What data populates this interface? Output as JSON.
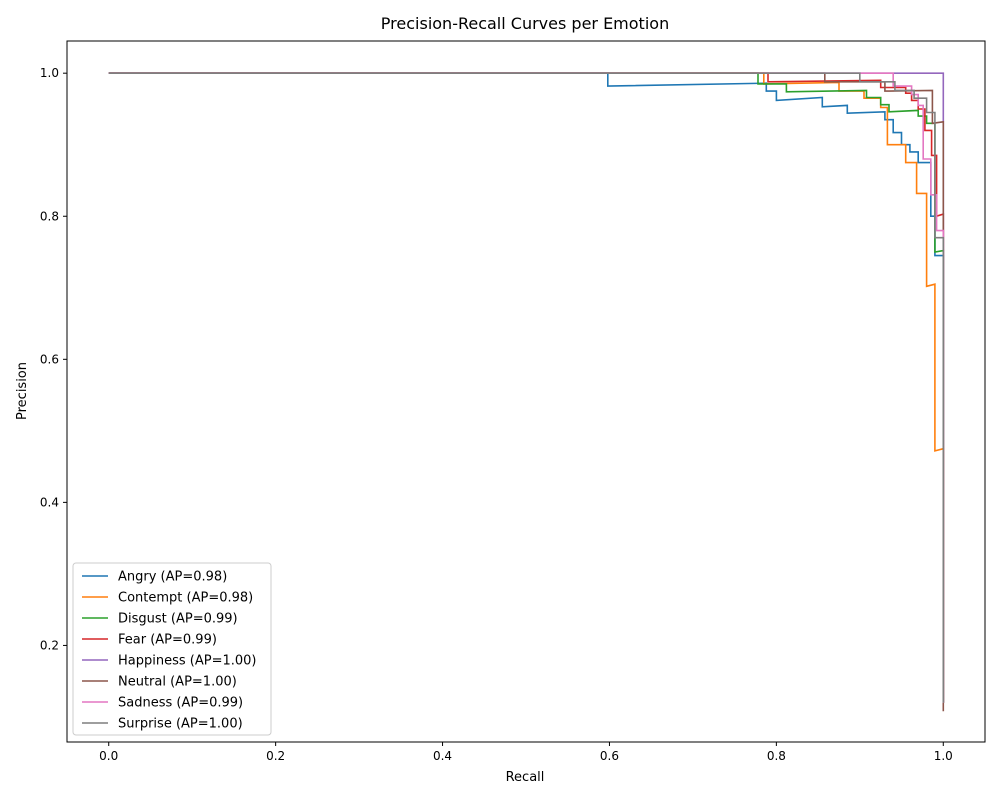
{
  "chart_data": {
    "type": "line",
    "title": "Precision-Recall Curves per Emotion",
    "xlabel": "Recall",
    "ylabel": "Precision",
    "xlim": [
      -0.05,
      1.05
    ],
    "ylim": [
      0.065,
      1.045
    ],
    "xticks": [
      "0.0",
      "0.2",
      "0.4",
      "0.6",
      "0.8",
      "1.0"
    ],
    "xtick_values": [
      0.0,
      0.2,
      0.4,
      0.6,
      0.8,
      1.0
    ],
    "yticks": [
      "0.2",
      "0.4",
      "0.6",
      "0.8",
      "1.0"
    ],
    "ytick_values": [
      0.2,
      0.4,
      0.6,
      0.8,
      1.0
    ],
    "grid": false,
    "legend_position": "lower-left",
    "series": [
      {
        "name": "Angry (AP=0.98)",
        "color": "#1f77b4",
        "points": [
          [
            0.0,
            1.0
          ],
          [
            0.598,
            1.0
          ],
          [
            0.598,
            0.982
          ],
          [
            0.788,
            0.986
          ],
          [
            0.788,
            0.975
          ],
          [
            0.8,
            0.975
          ],
          [
            0.8,
            0.962
          ],
          [
            0.855,
            0.966
          ],
          [
            0.855,
            0.953
          ],
          [
            0.885,
            0.955
          ],
          [
            0.885,
            0.944
          ],
          [
            0.93,
            0.946
          ],
          [
            0.93,
            0.935
          ],
          [
            0.94,
            0.935
          ],
          [
            0.94,
            0.917
          ],
          [
            0.95,
            0.917
          ],
          [
            0.95,
            0.9
          ],
          [
            0.96,
            0.9
          ],
          [
            0.96,
            0.89
          ],
          [
            0.97,
            0.89
          ],
          [
            0.97,
            0.875
          ],
          [
            0.985,
            0.875
          ],
          [
            0.985,
            0.8
          ],
          [
            0.99,
            0.8
          ],
          [
            0.99,
            0.745
          ],
          [
            1.0,
            0.745
          ],
          [
            1.0,
            0.12
          ]
        ]
      },
      {
        "name": "Contempt (AP=0.98)",
        "color": "#ff7f0e",
        "points": [
          [
            0.0,
            1.0
          ],
          [
            0.785,
            1.0
          ],
          [
            0.785,
            0.985
          ],
          [
            0.875,
            0.987
          ],
          [
            0.875,
            0.975
          ],
          [
            0.905,
            0.975
          ],
          [
            0.905,
            0.965
          ],
          [
            0.925,
            0.965
          ],
          [
            0.925,
            0.952
          ],
          [
            0.933,
            0.952
          ],
          [
            0.933,
            0.9
          ],
          [
            0.955,
            0.9
          ],
          [
            0.955,
            0.875
          ],
          [
            0.968,
            0.875
          ],
          [
            0.968,
            0.832
          ],
          [
            0.98,
            0.832
          ],
          [
            0.98,
            0.702
          ],
          [
            0.99,
            0.705
          ],
          [
            0.99,
            0.472
          ],
          [
            1.0,
            0.475
          ],
          [
            1.0,
            0.12
          ]
        ]
      },
      {
        "name": "Disgust (AP=0.99)",
        "color": "#2ca02c",
        "points": [
          [
            0.0,
            1.0
          ],
          [
            0.778,
            1.0
          ],
          [
            0.778,
            0.985
          ],
          [
            0.812,
            0.985
          ],
          [
            0.812,
            0.974
          ],
          [
            0.908,
            0.976
          ],
          [
            0.908,
            0.966
          ],
          [
            0.925,
            0.966
          ],
          [
            0.925,
            0.956
          ],
          [
            0.935,
            0.956
          ],
          [
            0.935,
            0.946
          ],
          [
            0.97,
            0.948
          ],
          [
            0.97,
            0.94
          ],
          [
            0.98,
            0.94
          ],
          [
            0.98,
            0.93
          ],
          [
            0.99,
            0.93
          ],
          [
            0.99,
            0.75
          ],
          [
            1.0,
            0.752
          ],
          [
            1.0,
            0.12
          ]
        ]
      },
      {
        "name": "Fear (AP=0.99)",
        "color": "#d62728",
        "points": [
          [
            0.0,
            1.0
          ],
          [
            0.79,
            1.0
          ],
          [
            0.79,
            0.988
          ],
          [
            0.925,
            0.99
          ],
          [
            0.925,
            0.98
          ],
          [
            0.955,
            0.98
          ],
          [
            0.955,
            0.972
          ],
          [
            0.962,
            0.972
          ],
          [
            0.962,
            0.962
          ],
          [
            0.97,
            0.962
          ],
          [
            0.97,
            0.95
          ],
          [
            0.978,
            0.95
          ],
          [
            0.978,
            0.92
          ],
          [
            0.986,
            0.92
          ],
          [
            0.986,
            0.885
          ],
          [
            0.992,
            0.885
          ],
          [
            0.992,
            0.8
          ],
          [
            1.0,
            0.803
          ],
          [
            1.0,
            0.12
          ]
        ]
      },
      {
        "name": "Happiness (AP=1.00)",
        "color": "#9467bd",
        "points": [
          [
            0.0,
            1.0
          ],
          [
            1.0,
            1.0
          ],
          [
            1.0,
            0.12
          ]
        ]
      },
      {
        "name": "Neutral (AP=1.00)",
        "color": "#8c564b",
        "points": [
          [
            0.0,
            1.0
          ],
          [
            0.858,
            1.0
          ],
          [
            0.858,
            0.988
          ],
          [
            0.93,
            0.988
          ],
          [
            0.93,
            0.975
          ],
          [
            0.987,
            0.976
          ],
          [
            0.987,
            0.93
          ],
          [
            1.0,
            0.932
          ],
          [
            1.0,
            0.108
          ]
        ]
      },
      {
        "name": "Sadness (AP=0.99)",
        "color": "#e377c2",
        "points": [
          [
            0.0,
            1.0
          ],
          [
            0.94,
            1.0
          ],
          [
            0.94,
            0.982
          ],
          [
            0.962,
            0.982
          ],
          [
            0.962,
            0.97
          ],
          [
            0.97,
            0.97
          ],
          [
            0.97,
            0.955
          ],
          [
            0.976,
            0.955
          ],
          [
            0.976,
            0.88
          ],
          [
            0.985,
            0.88
          ],
          [
            0.985,
            0.83
          ],
          [
            0.992,
            0.83
          ],
          [
            0.992,
            0.78
          ],
          [
            1.0,
            0.78
          ],
          [
            1.0,
            0.12
          ]
        ]
      },
      {
        "name": "Surprise (AP=1.00)",
        "color": "#7f7f7f",
        "points": [
          [
            0.0,
            1.0
          ],
          [
            0.9,
            1.0
          ],
          [
            0.9,
            0.988
          ],
          [
            0.942,
            0.988
          ],
          [
            0.942,
            0.976
          ],
          [
            0.965,
            0.976
          ],
          [
            0.965,
            0.965
          ],
          [
            0.98,
            0.965
          ],
          [
            0.98,
            0.945
          ],
          [
            0.99,
            0.945
          ],
          [
            0.99,
            0.77
          ],
          [
            1.0,
            0.77
          ],
          [
            1.0,
            0.12
          ]
        ]
      }
    ]
  }
}
